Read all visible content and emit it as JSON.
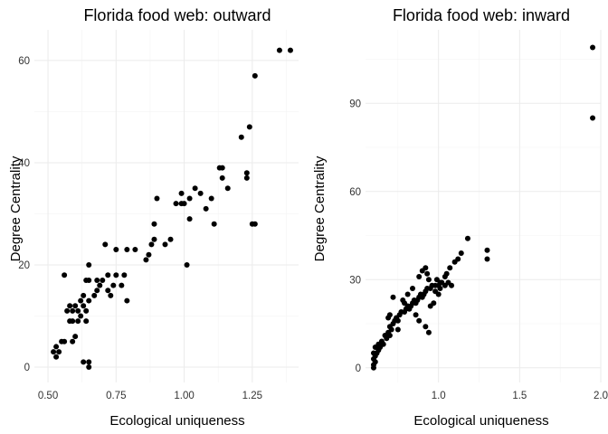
{
  "chart_data": [
    {
      "type": "scatter",
      "title": "Florida food web: outward",
      "xlabel": "Ecological uniqueness",
      "ylabel": "Degree Centrality",
      "xlim": [
        0.45,
        1.42
      ],
      "ylim": [
        -3,
        66
      ],
      "xticks": [
        0.5,
        0.75,
        1.0,
        1.25
      ],
      "xtick_labels": [
        "0.50",
        "0.75",
        "1.00",
        "1.25"
      ],
      "yticks": [
        0,
        20,
        40,
        60
      ],
      "ytick_labels": [
        "0",
        "20",
        "40",
        "60"
      ],
      "grid": true,
      "point_color": "#000000",
      "points": [
        [
          0.52,
          3
        ],
        [
          0.53,
          2
        ],
        [
          0.53,
          4
        ],
        [
          0.54,
          3
        ],
        [
          0.55,
          5
        ],
        [
          0.56,
          5
        ],
        [
          0.56,
          18
        ],
        [
          0.57,
          11
        ],
        [
          0.58,
          9
        ],
        [
          0.58,
          12
        ],
        [
          0.59,
          11
        ],
        [
          0.59,
          9
        ],
        [
          0.59,
          5
        ],
        [
          0.6,
          12
        ],
        [
          0.6,
          6
        ],
        [
          0.61,
          9
        ],
        [
          0.61,
          11
        ],
        [
          0.62,
          13
        ],
        [
          0.62,
          10
        ],
        [
          0.63,
          14
        ],
        [
          0.63,
          12
        ],
        [
          0.63,
          1
        ],
        [
          0.64,
          17
        ],
        [
          0.64,
          11
        ],
        [
          0.64,
          9
        ],
        [
          0.65,
          13
        ],
        [
          0.65,
          17
        ],
        [
          0.65,
          20
        ],
        [
          0.65,
          1
        ],
        [
          0.65,
          0
        ],
        [
          0.67,
          14
        ],
        [
          0.68,
          15
        ],
        [
          0.68,
          17
        ],
        [
          0.69,
          16
        ],
        [
          0.7,
          17
        ],
        [
          0.71,
          24
        ],
        [
          0.72,
          18
        ],
        [
          0.72,
          15
        ],
        [
          0.73,
          14
        ],
        [
          0.74,
          16
        ],
        [
          0.75,
          18
        ],
        [
          0.75,
          23
        ],
        [
          0.77,
          16
        ],
        [
          0.78,
          18
        ],
        [
          0.79,
          23
        ],
        [
          0.79,
          13
        ],
        [
          0.82,
          23
        ],
        [
          0.86,
          21
        ],
        [
          0.87,
          22
        ],
        [
          0.88,
          24
        ],
        [
          0.89,
          25
        ],
        [
          0.89,
          28
        ],
        [
          0.9,
          33
        ],
        [
          0.93,
          24
        ],
        [
          0.95,
          25
        ],
        [
          0.97,
          32
        ],
        [
          0.99,
          34
        ],
        [
          0.99,
          32
        ],
        [
          1.0,
          32
        ],
        [
          1.01,
          20
        ],
        [
          1.02,
          33
        ],
        [
          1.02,
          29
        ],
        [
          1.04,
          35
        ],
        [
          1.06,
          34
        ],
        [
          1.08,
          31
        ],
        [
          1.1,
          33
        ],
        [
          1.11,
          28
        ],
        [
          1.13,
          39
        ],
        [
          1.14,
          39
        ],
        [
          1.14,
          37
        ],
        [
          1.16,
          35
        ],
        [
          1.21,
          45
        ],
        [
          1.23,
          38
        ],
        [
          1.23,
          37
        ],
        [
          1.24,
          47
        ],
        [
          1.25,
          28
        ],
        [
          1.26,
          28
        ],
        [
          1.26,
          57
        ],
        [
          1.35,
          62
        ],
        [
          1.39,
          62
        ]
      ]
    },
    {
      "type": "scatter",
      "title": "Florida food web: inward",
      "xlabel": "Ecological uniqueness",
      "ylabel": "Degree Centrality",
      "xlim": [
        0.55,
        2.0
      ],
      "ylim": [
        -5,
        115
      ],
      "xticks": [
        1.0,
        1.5,
        2.0
      ],
      "xtick_labels": [
        "1.0",
        "1.5",
        "2.0"
      ],
      "yticks": [
        0,
        30,
        60,
        90
      ],
      "ytick_labels": [
        "0",
        "30",
        "60",
        "90"
      ],
      "grid": true,
      "point_color": "#000000",
      "points": [
        [
          0.6,
          0
        ],
        [
          0.6,
          1
        ],
        [
          0.61,
          2
        ],
        [
          0.6,
          3
        ],
        [
          0.61,
          4
        ],
        [
          0.6,
          5
        ],
        [
          0.62,
          5
        ],
        [
          0.63,
          6
        ],
        [
          0.61,
          7
        ],
        [
          0.64,
          7
        ],
        [
          0.63,
          8
        ],
        [
          0.66,
          8
        ],
        [
          0.65,
          9
        ],
        [
          0.68,
          10
        ],
        [
          0.67,
          11
        ],
        [
          0.7,
          11
        ],
        [
          0.69,
          12
        ],
        [
          0.71,
          13
        ],
        [
          0.7,
          14
        ],
        [
          0.72,
          15
        ],
        [
          0.73,
          16
        ],
        [
          0.75,
          16
        ],
        [
          0.74,
          17
        ],
        [
          0.76,
          18
        ],
        [
          0.77,
          19
        ],
        [
          0.79,
          19
        ],
        [
          0.8,
          20
        ],
        [
          0.82,
          20
        ],
        [
          0.81,
          21
        ],
        [
          0.83,
          21
        ],
        [
          0.84,
          22
        ],
        [
          0.86,
          22
        ],
        [
          0.85,
          23
        ],
        [
          0.87,
          23
        ],
        [
          0.88,
          24
        ],
        [
          0.9,
          24
        ],
        [
          0.89,
          25
        ],
        [
          0.91,
          25
        ],
        [
          0.92,
          26
        ],
        [
          0.93,
          27
        ],
        [
          0.95,
          27
        ],
        [
          0.96,
          28
        ],
        [
          0.98,
          28
        ],
        [
          1.0,
          28
        ],
        [
          0.99,
          30
        ],
        [
          1.01,
          29
        ],
        [
          1.02,
          29
        ],
        [
          0.94,
          30
        ],
        [
          0.9,
          33
        ],
        [
          0.92,
          34
        ],
        [
          0.93,
          32
        ],
        [
          0.88,
          31
        ],
        [
          0.84,
          27
        ],
        [
          0.81,
          25
        ],
        [
          0.79,
          22
        ],
        [
          0.78,
          23
        ],
        [
          0.72,
          24
        ],
        [
          0.7,
          18
        ],
        [
          0.75,
          13
        ],
        [
          0.69,
          17
        ],
        [
          0.86,
          18
        ],
        [
          0.88,
          16
        ],
        [
          0.92,
          14
        ],
        [
          0.94,
          12
        ],
        [
          0.95,
          21
        ],
        [
          0.97,
          22
        ],
        [
          1.0,
          25
        ],
        [
          1.04,
          28
        ],
        [
          1.06,
          29
        ],
        [
          1.08,
          28
        ],
        [
          1.12,
          37
        ],
        [
          1.14,
          39
        ],
        [
          1.18,
          44
        ],
        [
          1.1,
          36
        ],
        [
          1.07,
          34
        ],
        [
          1.05,
          32
        ],
        [
          1.04,
          31
        ],
        [
          1.01,
          27
        ],
        [
          0.98,
          26
        ],
        [
          1.3,
          37
        ],
        [
          1.3,
          40
        ],
        [
          1.95,
          85
        ],
        [
          1.95,
          109
        ]
      ]
    }
  ]
}
